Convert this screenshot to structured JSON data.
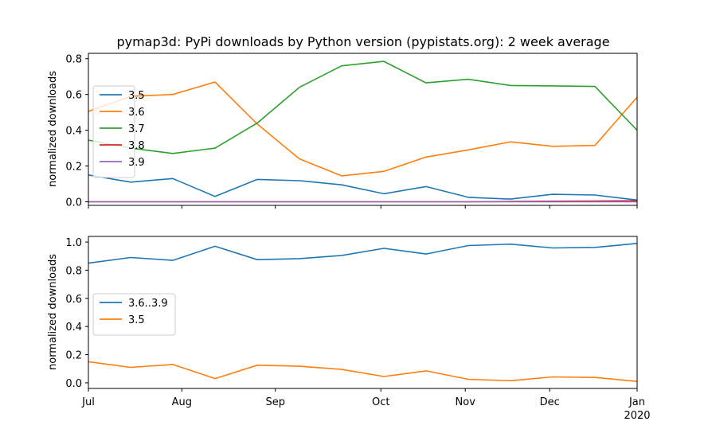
{
  "figure_title": "pymap3d: PyPi downloads by Python version (pypistats.org): 2 week average",
  "colors": {
    "c0": "#1f77b4",
    "c1": "#ff7f0e",
    "c2": "#2ca02c",
    "c3": "#d62728",
    "c4": "#9467bd",
    "axis": "#000000",
    "legend_edge": "#cccccc"
  },
  "chart_data": [
    {
      "type": "line",
      "title": "pymap3d: PyPi downloads by Python version (pypistats.org): 2 week average",
      "xlabel": "",
      "ylabel": "normalized downloads",
      "x": [
        "2019-07-01",
        "2019-07-15",
        "2019-07-29",
        "2019-08-12",
        "2019-08-26",
        "2019-09-09",
        "2019-09-23",
        "2019-10-07",
        "2019-10-21",
        "2019-11-04",
        "2019-11-18",
        "2019-12-02",
        "2019-12-16",
        "2019-12-30"
      ],
      "xlim": [
        "2019-07-01",
        "2019-12-30"
      ],
      "ylim": [
        -0.02,
        0.83
      ],
      "yticks": [
        0.0,
        0.2,
        0.4,
        0.6,
        0.8
      ],
      "ytick_labels": [
        "0.0",
        "0.2",
        "0.4",
        "0.6",
        "0.8"
      ],
      "legend_position": "center-left",
      "grid": false,
      "series": [
        {
          "name": "3.5",
          "color": "#1f77b4",
          "values": [
            0.15,
            0.11,
            0.13,
            0.03,
            0.125,
            0.118,
            0.095,
            0.045,
            0.085,
            0.025,
            0.015,
            0.042,
            0.038,
            0.01
          ]
        },
        {
          "name": "3.6",
          "color": "#ff7f0e",
          "values": [
            0.505,
            0.59,
            0.6,
            0.67,
            0.435,
            0.24,
            0.145,
            0.17,
            0.25,
            0.29,
            0.335,
            0.31,
            0.315,
            0.585
          ]
        },
        {
          "name": "3.7",
          "color": "#2ca02c",
          "values": [
            0.345,
            0.3,
            0.27,
            0.3,
            0.44,
            0.64,
            0.76,
            0.785,
            0.665,
            0.685,
            0.65,
            0.648,
            0.645,
            0.4
          ]
        },
        {
          "name": "3.8",
          "color": "#d62728",
          "values": [
            0.0,
            0.0,
            0.0,
            0.0,
            0.0,
            0.0,
            0.0,
            0.0,
            0.0,
            0.0,
            0.002,
            0.003,
            0.004,
            0.006
          ]
        },
        {
          "name": "3.9",
          "color": "#9467bd",
          "values": [
            0.0,
            0.0,
            0.0,
            0.0,
            0.0,
            0.0,
            0.0,
            0.0,
            0.0,
            0.0,
            0.0,
            0.0,
            0.0,
            0.0
          ]
        }
      ]
    },
    {
      "type": "line",
      "title": "",
      "xlabel": "",
      "ylabel": "normalized downloads",
      "x": [
        "2019-07-01",
        "2019-07-15",
        "2019-07-29",
        "2019-08-12",
        "2019-08-26",
        "2019-09-09",
        "2019-09-23",
        "2019-10-07",
        "2019-10-21",
        "2019-11-04",
        "2019-11-18",
        "2019-12-02",
        "2019-12-16",
        "2019-12-30"
      ],
      "xlim": [
        "2019-07-01",
        "2019-12-30"
      ],
      "ylim": [
        -0.04,
        1.04
      ],
      "yticks": [
        0.0,
        0.2,
        0.4,
        0.6,
        0.8,
        1.0
      ],
      "ytick_labels": [
        "0.0",
        "0.2",
        "0.4",
        "0.6",
        "0.8",
        "1.0"
      ],
      "xticks": [
        "2019-07-01",
        "2019-08-01",
        "2019-09-01",
        "2019-10-06",
        "2019-11-03",
        "2019-12-01",
        "2019-12-30"
      ],
      "xtick_labels": [
        "Jul",
        "Aug",
        "Sep",
        "Oct",
        "Nov",
        "Dec",
        "Jan"
      ],
      "xtick_year_label": "2020",
      "legend_position": "center-left",
      "grid": false,
      "series": [
        {
          "name": "3.6..3.9",
          "color": "#1f77b4",
          "values": [
            0.85,
            0.89,
            0.87,
            0.97,
            0.875,
            0.882,
            0.905,
            0.955,
            0.915,
            0.975,
            0.985,
            0.958,
            0.962,
            0.99
          ]
        },
        {
          "name": "3.5",
          "color": "#ff7f0e",
          "values": [
            0.15,
            0.11,
            0.13,
            0.03,
            0.125,
            0.118,
            0.095,
            0.045,
            0.085,
            0.025,
            0.015,
            0.042,
            0.038,
            0.01
          ]
        }
      ]
    }
  ]
}
